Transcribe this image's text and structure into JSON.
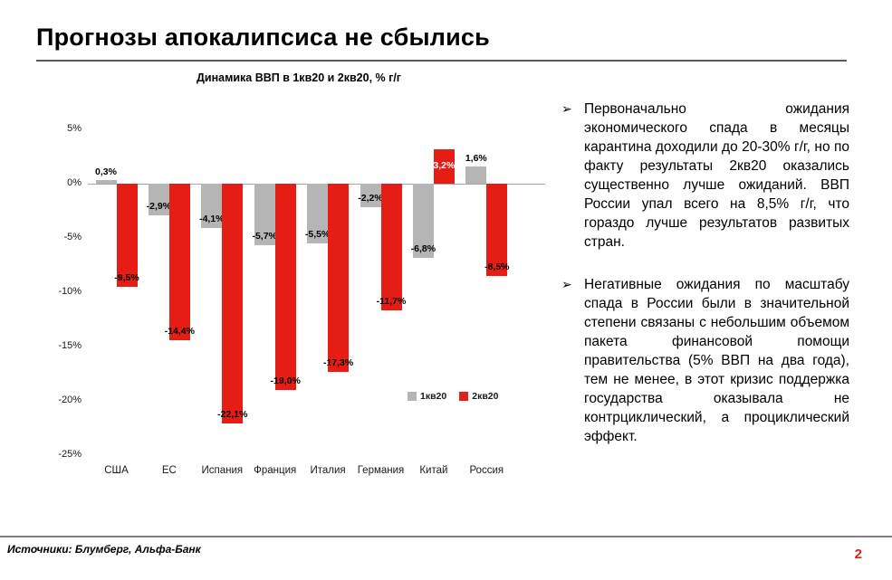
{
  "slide": {
    "title": "Прогнозы апокалипсиса не сбылись",
    "footer_source": "Источники: Блумберг, Альфа-Банк",
    "page_number": "2"
  },
  "colors": {
    "series1_gray": "#b5b5b5",
    "series2_red": "#e61d14",
    "page_number_red": "#e61d14"
  },
  "chart_data": {
    "type": "bar",
    "title": "Динамика ВВП в 1кв20 и 2кв20, % г/г",
    "categories": [
      "США",
      "ЕС",
      "Испания",
      "Франция",
      "Италия",
      "Германия",
      "Китай",
      "Россия"
    ],
    "series": [
      {
        "name": "1кв20",
        "color": "#b5b5b5",
        "values": [
          0.3,
          -2.9,
          -4.1,
          -5.7,
          -5.5,
          -2.2,
          -6.8,
          1.6
        ],
        "labels": [
          "0,3%",
          "-2,9%",
          "-4,1%",
          "-5,7%",
          "-5,5%",
          "-2,2%",
          "-6,8%",
          "1,6%"
        ]
      },
      {
        "name": "2кв20",
        "color": "#e61d14",
        "values": [
          -9.5,
          -14.4,
          -22.1,
          -19.0,
          -17.3,
          -11.7,
          3.2,
          -8.5
        ],
        "labels": [
          "-9,5%",
          "-14,4%",
          "-22,1%",
          "-19,0%",
          "-17,3%",
          "-11,7%",
          "3,2%",
          "-8,5%"
        ]
      }
    ],
    "y_ticks": [
      "5%",
      "0%",
      "-5%",
      "-10%",
      "-15%",
      "-20%",
      "-25%"
    ],
    "y_tick_values": [
      5,
      0,
      -5,
      -10,
      -15,
      -20,
      -25
    ],
    "ylim": [
      -25,
      6
    ],
    "xlabel": "",
    "ylabel": "",
    "grid": false,
    "legend_position": "inside-right"
  },
  "bullets": [
    {
      "marker": "➢",
      "text": "Первоначально ожидания экономического спада в месяцы карантина доходили до 20-30% г/г, но по факту результаты 2кв20 оказались существенно лучше ожиданий. ВВП России упал всего на 8,5% г/г, что гораздо лучше результатов развитых стран."
    },
    {
      "marker": "➢",
      "text": "Негативные ожидания по масштабу спада в России были в значительной степени связаны с небольшим объемом пакета финансовой помощи правительства (5% ВВП на два года), тем не менее, в этот кризис поддержка государства оказывала не контрциклический, а проциклический эффект."
    }
  ]
}
